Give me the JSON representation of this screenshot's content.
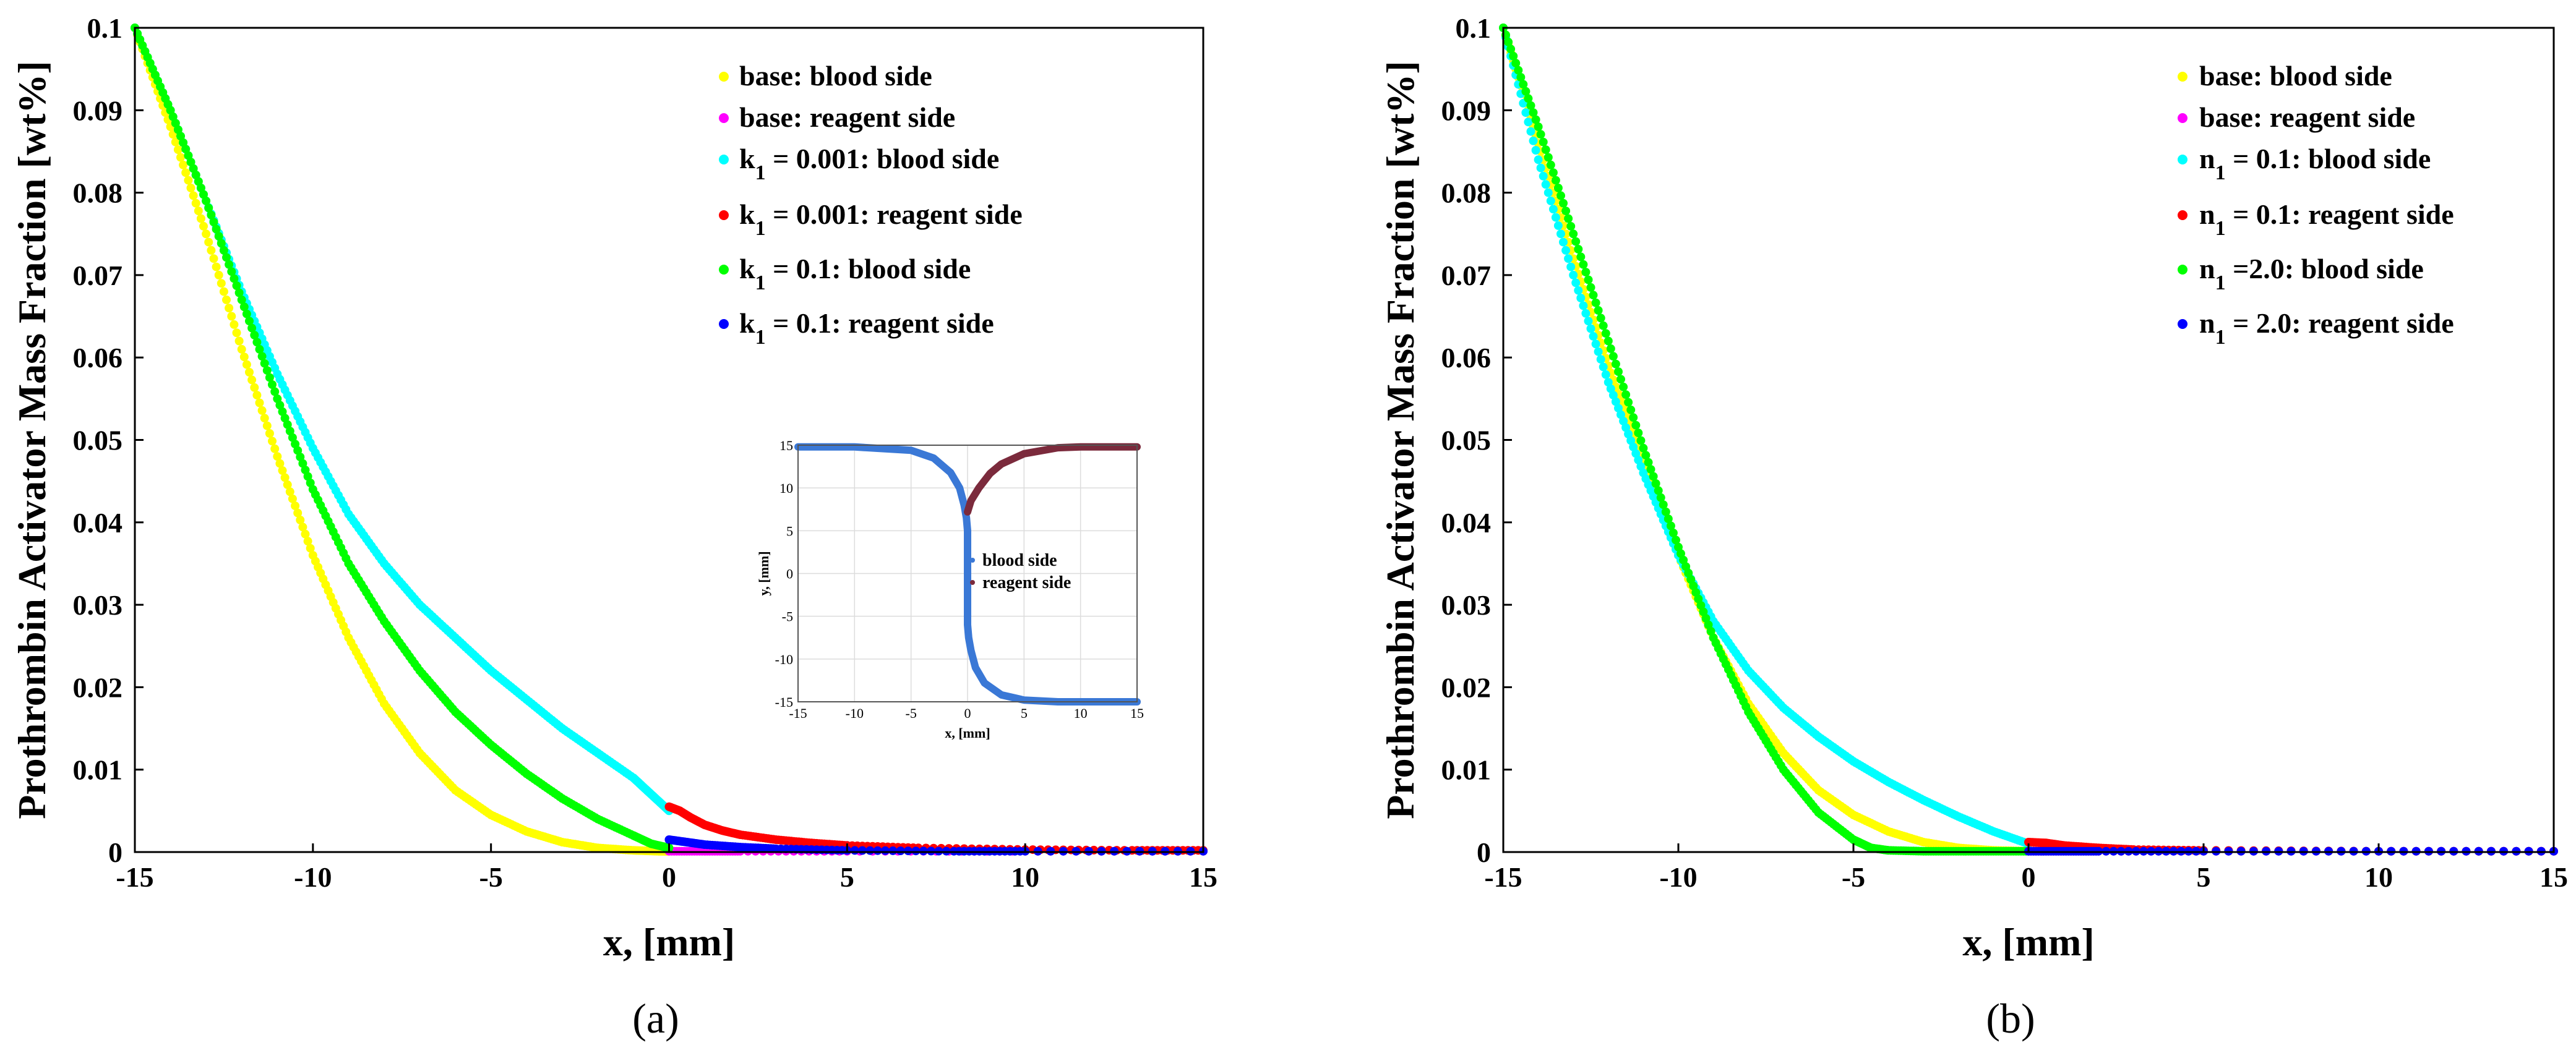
{
  "chart_data": [
    {
      "type": "scatter",
      "panel_label": "(a)",
      "panel_letter": "a",
      "xlabel": "x, [mm]",
      "ylabel": "Prothrombin Activator Mass Fraction [wt%]",
      "xlim": [
        -15,
        15
      ],
      "ylim": [
        0,
        0.1
      ],
      "x_ticks": [
        "-15",
        "-10",
        "-5",
        "0",
        "5",
        "10",
        "15"
      ],
      "y_ticks": [
        "0",
        "0.01",
        "0.02",
        "0.03",
        "0.04",
        "0.05",
        "0.06",
        "0.07",
        "0.08",
        "0.09",
        "0.1"
      ],
      "legend_position": "top-right",
      "series": [
        {
          "name": "base: blood side",
          "legend": {
            "pre": "base: blood side",
            "sub": "",
            "post": ""
          },
          "color": "#ffff00",
          "x": [
            -15,
            -14,
            -13,
            -12,
            -11,
            -10,
            -9,
            -8,
            -7,
            -6,
            -5,
            -4,
            -3,
            -2,
            -1,
            -0.3,
            0
          ],
          "y": [
            0.1,
            0.088,
            0.075,
            0.061,
            0.048,
            0.036,
            0.026,
            0.018,
            0.012,
            0.0075,
            0.0045,
            0.0025,
            0.0012,
            0.0005,
            0.0002,
            0.0001,
            0.0001
          ]
        },
        {
          "name": "base: reagent side",
          "legend": {
            "pre": "base: reagent side",
            "sub": "",
            "post": ""
          },
          "color": "#ff00ff",
          "x": [
            0,
            1,
            2,
            5,
            10,
            15
          ],
          "y": [
            0.0001,
            0.0001,
            0.0001,
            0.0001,
            0.0001,
            0.0001
          ]
        },
        {
          "name": "k1 = 0.001: blood side",
          "legend": {
            "pre": "k",
            "sub": "1",
            "post": " = 0.001: blood side"
          },
          "color": "#00ffff",
          "x": [
            -15,
            -14,
            -13,
            -12,
            -11,
            -10,
            -9,
            -8,
            -7,
            -6,
            -5,
            -4,
            -3,
            -2,
            -1,
            -0.5,
            0
          ],
          "y": [
            0.1,
            0.09,
            0.079,
            0.068,
            0.058,
            0.049,
            0.041,
            0.035,
            0.03,
            0.026,
            0.022,
            0.0185,
            0.015,
            0.012,
            0.009,
            0.007,
            0.005
          ]
        },
        {
          "name": "k1 = 0.001: reagent side",
          "legend": {
            "pre": "k",
            "sub": "1",
            "post": " = 0.001: reagent side"
          },
          "color": "#ff0000",
          "x": [
            0,
            0.3,
            0.6,
            1,
            1.5,
            2,
            3,
            4,
            5,
            7,
            10,
            13,
            15
          ],
          "y": [
            0.0055,
            0.005,
            0.0042,
            0.0033,
            0.0026,
            0.0021,
            0.0015,
            0.0011,
            0.0008,
            0.0005,
            0.0003,
            0.0002,
            0.0002
          ]
        },
        {
          "name": "k1 = 0.1: blood side",
          "legend": {
            "pre": "k",
            "sub": "1",
            "post": " = 0.1: blood side"
          },
          "color": "#00ff00",
          "x": [
            -15,
            -14,
            -13,
            -12,
            -11,
            -10,
            -9,
            -8,
            -7,
            -6,
            -5,
            -4,
            -3,
            -2,
            -1,
            -0.5,
            0
          ],
          "y": [
            0.1,
            0.09,
            0.079,
            0.067,
            0.055,
            0.044,
            0.035,
            0.028,
            0.022,
            0.017,
            0.013,
            0.0095,
            0.0065,
            0.004,
            0.002,
            0.001,
            0.0005
          ]
        },
        {
          "name": "k1 = 0.1: reagent side",
          "legend": {
            "pre": "k",
            "sub": "1",
            "post": " = 0.1: reagent side"
          },
          "color": "#0000ff",
          "x": [
            0,
            0.5,
            1,
            2,
            3,
            5,
            8,
            10,
            15
          ],
          "y": [
            0.0015,
            0.0012,
            0.0009,
            0.0006,
            0.0004,
            0.0002,
            0.0001,
            0.0001,
            0.0001
          ]
        }
      ],
      "inset": {
        "type": "scatter",
        "xlabel": "x, [mm]",
        "ylabel": "y, [mm]",
        "xlim": [
          -15,
          15
        ],
        "ylim": [
          -15,
          15
        ],
        "x_ticks": [
          "-15",
          "-10",
          "-5",
          "0",
          "5",
          "10",
          "15"
        ],
        "y_ticks": [
          "15",
          "10",
          "5",
          "0",
          "-5",
          "-10",
          "-15"
        ],
        "grid": true,
        "legend_position": "center-right",
        "series": [
          {
            "name": "blood side",
            "color": "#3a78d6",
            "x": [
              -15,
              -10,
              -5,
              -3,
              -1.5,
              -0.7,
              -0.3,
              -0.1,
              0,
              0,
              0,
              0.1,
              0.3,
              0.7,
              1.5,
              3,
              5,
              8,
              10,
              15
            ],
            "y": [
              14.8,
              14.8,
              14.4,
              13.5,
              11.8,
              10,
              8,
              6.5,
              5,
              0,
              -6,
              -7.5,
              -9,
              -11,
              -12.8,
              -14.2,
              -14.8,
              -15,
              -15,
              -15
            ]
          },
          {
            "name": "reagent side",
            "color": "#7b2a3c",
            "x": [
              0,
              0.3,
              1,
              2,
              3,
              5,
              8,
              10,
              15
            ],
            "y": [
              7.2,
              8.5,
              10,
              11.7,
              12.8,
              14,
              14.7,
              14.8,
              14.8
            ]
          }
        ]
      }
    },
    {
      "type": "scatter",
      "panel_label": "(b)",
      "panel_letter": "b",
      "xlabel": "x, [mm]",
      "ylabel": "Prothrombin Activator Mass Fraction [wt%]",
      "xlim": [
        -15,
        15
      ],
      "ylim": [
        0,
        0.1
      ],
      "x_ticks": [
        "-15",
        "-10",
        "-5",
        "0",
        "5",
        "10",
        "15"
      ],
      "y_ticks": [
        "0",
        "0.01",
        "0.02",
        "0.03",
        "0.04",
        "0.05",
        "0.06",
        "0.07",
        "0.08",
        "0.09",
        "0.1"
      ],
      "legend_position": "top-right",
      "series": [
        {
          "name": "base: blood side",
          "legend": {
            "pre": "base: blood side",
            "sub": "",
            "post": ""
          },
          "color": "#ffff00",
          "x": [
            -15,
            -14,
            -13,
            -12,
            -11,
            -10,
            -9,
            -8,
            -7,
            -6,
            -5,
            -4,
            -3,
            -2,
            -1,
            0
          ],
          "y": [
            0.1,
            0.086,
            0.072,
            0.059,
            0.047,
            0.036,
            0.026,
            0.018,
            0.012,
            0.0075,
            0.0045,
            0.0025,
            0.0012,
            0.0005,
            0.0002,
            0.0001
          ]
        },
        {
          "name": "base: reagent side",
          "legend": {
            "pre": "base: reagent side",
            "sub": "",
            "post": ""
          },
          "color": "#ff00ff",
          "x": [
            0,
            1,
            2,
            5,
            10,
            15
          ],
          "y": [
            0.0001,
            0.0001,
            0.0001,
            0.0001,
            0.0001,
            0.0001
          ]
        },
        {
          "name": "n1 = 0.1: blood side",
          "legend": {
            "pre": "n",
            "sub": "1",
            "post": " = 0.1: blood side"
          },
          "color": "#00ffff",
          "x": [
            -15,
            -14,
            -13,
            -12,
            -11,
            -10,
            -9,
            -8,
            -7,
            -6,
            -5,
            -4,
            -3,
            -2,
            -1,
            0
          ],
          "y": [
            0.1,
            0.084,
            0.07,
            0.057,
            0.046,
            0.036,
            0.028,
            0.022,
            0.0175,
            0.014,
            0.011,
            0.0085,
            0.0063,
            0.0043,
            0.0025,
            0.001
          ]
        },
        {
          "name": "n1 = 0.1: reagent side",
          "legend": {
            "pre": "n",
            "sub": "1",
            "post": " = 0.1: reagent side"
          },
          "color": "#ff0000",
          "x": [
            0,
            0.5,
            1,
            2,
            3,
            5,
            10,
            15
          ],
          "y": [
            0.0012,
            0.0011,
            0.0008,
            0.0005,
            0.0003,
            0.0002,
            0.0001,
            0.0001
          ]
        },
        {
          "name": "n1 =2.0: blood side",
          "legend": {
            "pre": "n",
            "sub": "1",
            "post": " =2.0: blood side"
          },
          "color": "#00ff00",
          "x": [
            -15,
            -14,
            -13,
            -12,
            -11,
            -10,
            -9,
            -8,
            -7,
            -6,
            -5,
            -4.5,
            -4,
            -3,
            -2,
            -1,
            0
          ],
          "y": [
            0.1,
            0.088,
            0.075,
            0.062,
            0.049,
            0.037,
            0.026,
            0.017,
            0.01,
            0.0048,
            0.0015,
            0.0005,
            0.0002,
            0.0001,
            0.0001,
            0.0001,
            0.0001
          ]
        },
        {
          "name": "n1 = 2.0: reagent side",
          "legend": {
            "pre": "n",
            "sub": "1",
            "post": " = 2.0: reagent side"
          },
          "color": "#0000ff",
          "x": [
            0,
            1,
            2,
            5,
            10,
            15
          ],
          "y": [
            0.0001,
            0.0001,
            0.0001,
            0.0001,
            0.0001,
            0.0001
          ]
        }
      ]
    }
  ]
}
